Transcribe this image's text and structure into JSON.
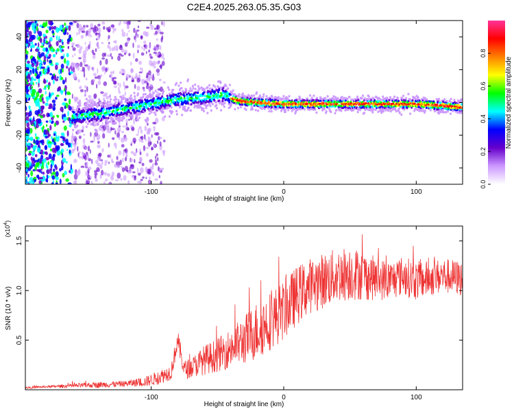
{
  "title": "C2E4.2025.263.05.35.G03",
  "colorbar": {
    "label": "Normalized spectral amplitude",
    "ticks": [
      "0.0",
      "0.2",
      "0.4",
      "0.6",
      "0.8"
    ],
    "tick_values": [
      0.0,
      0.2,
      0.4,
      0.6,
      0.8
    ],
    "range": [
      0,
      1
    ],
    "stops": [
      "#ffffff",
      "#cc99ff",
      "#6600cc",
      "#0000ff",
      "#00ffff",
      "#00ff00",
      "#ffff00",
      "#ff8000",
      "#ff0000",
      "#ff3399"
    ]
  },
  "chart_data": [
    {
      "type": "heatmap",
      "title": "C2E4.2025.263.05.35.G03",
      "xlabel": "Height of straight line (km)",
      "ylabel": "Frequency (Hz)",
      "xlim": [
        -195,
        135
      ],
      "ylim": [
        -50,
        50
      ],
      "x_ticks": [
        -100,
        0,
        100
      ],
      "x_tick_labels": [
        "-100",
        "0",
        "100"
      ],
      "y_ticks": [
        -40,
        -20,
        0,
        20,
        40
      ],
      "y_tick_labels": [
        "-40",
        "-20",
        "0",
        "20",
        "40"
      ],
      "ridge": {
        "x": [
          -160,
          -140,
          -120,
          -100,
          -80,
          -60,
          -45,
          -35,
          -20,
          0,
          20,
          40,
          60,
          80,
          100,
          120,
          135
        ],
        "frequency": [
          -9,
          -7,
          -4,
          -1,
          2,
          3,
          5,
          1,
          0,
          -1,
          -1,
          -1,
          -1,
          -1,
          -1,
          -2,
          -3
        ]
      }
    },
    {
      "type": "line",
      "xlabel": "Height of straight line (km)",
      "ylabel": "SNR (10 * v/v)",
      "y_multiplier": "(x10",
      "y_multiplier_exp": "4",
      "y_multiplier_close": ")",
      "xlim": [
        -195,
        135
      ],
      "ylim": [
        0,
        1.65
      ],
      "x_ticks": [
        -100,
        0,
        100
      ],
      "x_tick_labels": [
        "-100",
        "0",
        "100"
      ],
      "y_ticks": [
        0.5,
        1.0,
        1.5
      ],
      "y_tick_labels": [
        "0.5",
        "1.0",
        "1.5"
      ],
      "series": [
        {
          "name": "SNR",
          "color": "#ee3333",
          "x": [
            -195,
            -180,
            -160,
            -140,
            -120,
            -105,
            -95,
            -85,
            -80,
            -75,
            -70,
            -60,
            -50,
            -40,
            -30,
            -20,
            -10,
            0,
            10,
            20,
            30,
            40,
            50,
            60,
            70,
            80,
            90,
            100,
            110,
            120,
            135
          ],
          "y": [
            0.02,
            0.03,
            0.04,
            0.05,
            0.06,
            0.08,
            0.12,
            0.18,
            0.5,
            0.2,
            0.22,
            0.3,
            0.35,
            0.42,
            0.5,
            0.6,
            0.7,
            0.8,
            0.95,
            1.05,
            1.1,
            1.15,
            1.18,
            1.15,
            1.12,
            1.1,
            1.15,
            1.1,
            1.12,
            1.15,
            1.12
          ],
          "noise": [
            0.01,
            0.01,
            0.02,
            0.03,
            0.03,
            0.05,
            0.07,
            0.08,
            0.1,
            0.1,
            0.1,
            0.15,
            0.17,
            0.2,
            0.25,
            0.3,
            0.3,
            0.3,
            0.3,
            0.28,
            0.28,
            0.28,
            0.28,
            0.25,
            0.22,
            0.2,
            0.2,
            0.2,
            0.18,
            0.18,
            0.18
          ]
        }
      ]
    }
  ]
}
